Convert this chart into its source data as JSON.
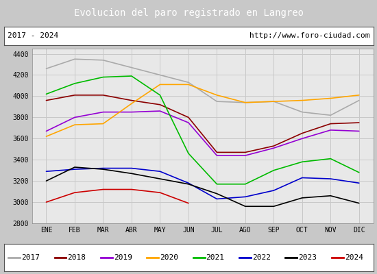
{
  "title": "Evolucion del paro registrado en Langreo",
  "title_bg": "#5b9bd5",
  "title_color": "white",
  "info_left": "2017 - 2024",
  "info_right": "http://www.foro-ciudad.com",
  "ylim": [
    2800,
    4450
  ],
  "months": [
    "ENE",
    "FEB",
    "MAR",
    "ABR",
    "MAY",
    "JUN",
    "JUL",
    "AGO",
    "SEP",
    "OCT",
    "NOV",
    "DIC"
  ],
  "series_order": [
    "2017",
    "2018",
    "2019",
    "2020",
    "2021",
    "2022",
    "2023",
    "2024"
  ],
  "colors": {
    "2017": "#aaaaaa",
    "2018": "#8b0000",
    "2019": "#9400d3",
    "2020": "#ffa500",
    "2021": "#00bb00",
    "2022": "#0000cc",
    "2023": "#000000",
    "2024": "#cc0000"
  },
  "series_data": {
    "2017": [
      4260,
      4350,
      4340,
      4270,
      4200,
      4130,
      3950,
      3940,
      3950,
      3850,
      3820,
      3960
    ],
    "2018": [
      3960,
      4010,
      4010,
      3960,
      3920,
      3800,
      3470,
      3470,
      3530,
      3650,
      3740,
      3750
    ],
    "2019": [
      3670,
      3800,
      3850,
      3850,
      3860,
      3750,
      3440,
      3440,
      3510,
      3600,
      3680,
      3670
    ],
    "2020": [
      3620,
      3730,
      3740,
      3930,
      4110,
      4110,
      4010,
      3940,
      3950,
      3960,
      3980,
      4010
    ],
    "2021": [
      4020,
      4120,
      4180,
      4190,
      4010,
      3460,
      3170,
      3170,
      3300,
      3380,
      3410,
      3280
    ],
    "2022": [
      3290,
      3310,
      3320,
      3320,
      3290,
      3180,
      3030,
      3050,
      3110,
      3230,
      3220,
      3180
    ],
    "2023": [
      3200,
      3330,
      3310,
      3270,
      3220,
      3170,
      3080,
      2960,
      2960,
      3040,
      3060,
      2990
    ],
    "2024": [
      3000,
      3090,
      3120,
      3120,
      3090,
      2990
    ]
  },
  "yticks": [
    2800,
    3000,
    3200,
    3400,
    3600,
    3800,
    4000,
    4200,
    4400
  ],
  "grid_color": "#c8c8c8",
  "plot_bg": "#e8e8e8",
  "outer_bg": "#c8c8c8"
}
